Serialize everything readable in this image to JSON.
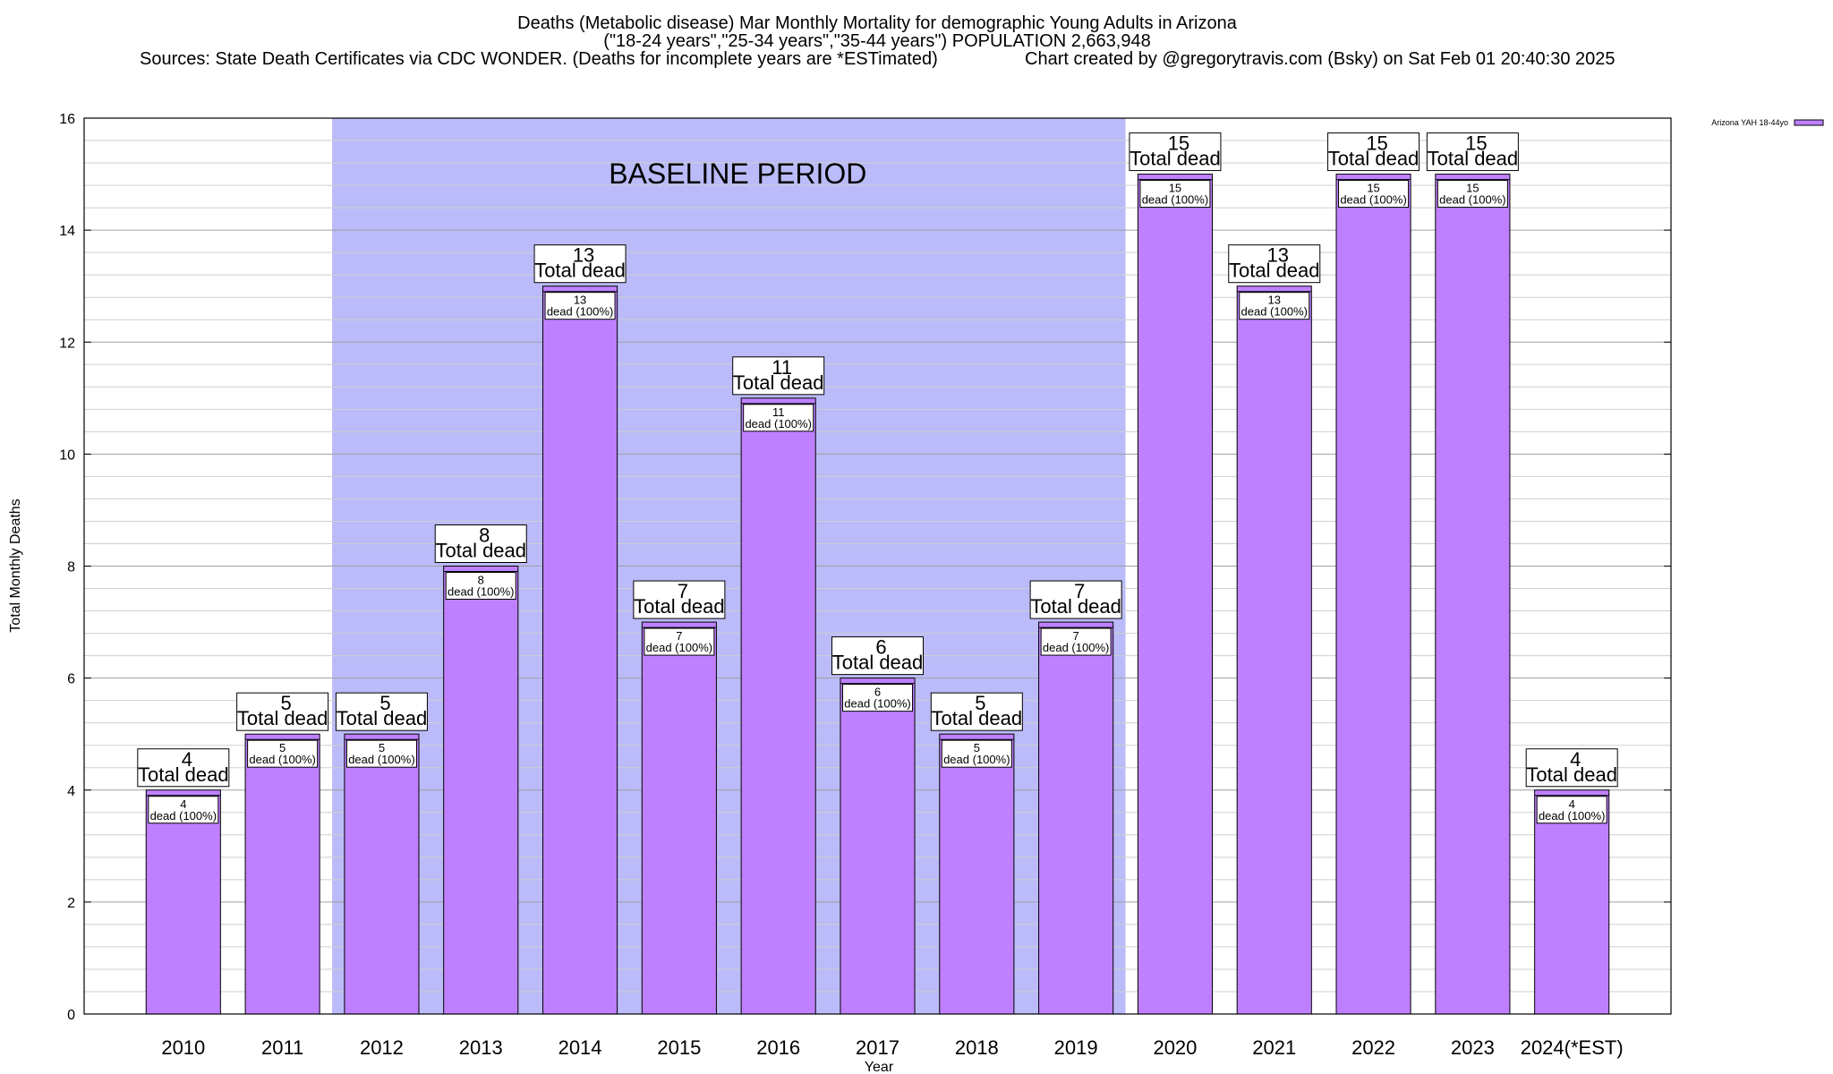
{
  "title": {
    "line1": "Deaths (Metabolic disease) Mar Monthly Mortality for demographic Young Adults in Arizona",
    "line2": "(\"18-24 years\",\"25-34 years\",\"35-44 years\") POPULATION 2,663,948",
    "line3_left": "Sources: State Death Certificates via CDC WONDER. (Deaths for incomplete years are *ESTimated)",
    "line3_right": "Chart created by @gregorytravis.com (Bsky) on Sat Feb 01 20:40:30 2025"
  },
  "chart_data": {
    "type": "bar",
    "categories": [
      "2010",
      "2011",
      "2012",
      "2013",
      "2014",
      "2015",
      "2016",
      "2017",
      "2018",
      "2019",
      "2020",
      "2021",
      "2022",
      "2023",
      "2024(*EST)"
    ],
    "series": [
      {
        "name": "Arizona YAH 18-44yo",
        "values": [
          4,
          5,
          5,
          8,
          13,
          7,
          11,
          6,
          5,
          7,
          15,
          13,
          15,
          15,
          4
        ]
      }
    ],
    "xlabel": "Year",
    "ylabel": "Total Monthly Deaths",
    "ylim": [
      0,
      16
    ],
    "yticks": [
      0,
      2,
      4,
      6,
      8,
      10,
      12,
      14,
      16
    ],
    "grid": true,
    "legend_position": "top-right",
    "baseline_period": {
      "label": "BASELINE PERIOD",
      "start": "2012",
      "end": "2019"
    },
    "bar_top_label_suffix": "Total dead",
    "bar_inner_label_suffix": "dead (100%)",
    "colors": {
      "bar": "#bf80ff",
      "bar_edge": "#000000",
      "baseline_shade": "#bbbbf9",
      "grid": "#b0b0b0"
    }
  }
}
